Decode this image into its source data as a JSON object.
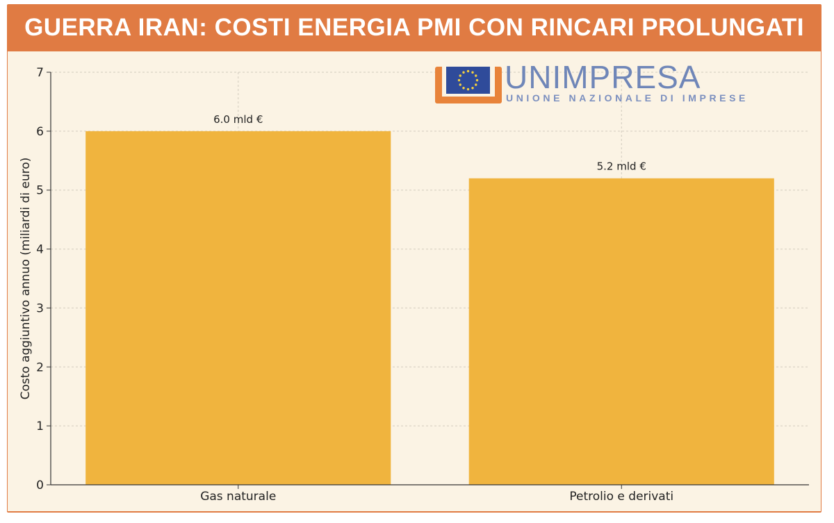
{
  "header": {
    "title": "GUERRA IRAN: COSTI ENERGIA PMI CON RINCARI PROLUNGATI"
  },
  "logo": {
    "name": "UNIMPRESA",
    "tagline": "UNIONE NAZIONALE DI IMPRESE"
  },
  "colors": {
    "frame": "#e07b43",
    "panel": "#fbf3e4",
    "bar": "#f0b43e",
    "logo": "#6f86b8"
  },
  "chart_data": {
    "type": "bar",
    "title": "GUERRA IRAN: COSTI ENERGIA PMI CON RINCARI PROLUNGATI",
    "categories": [
      "Gas naturale",
      "Petrolio e derivati"
    ],
    "values": [
      6.0,
      5.2
    ],
    "data_labels": [
      "6.0 mld €",
      "5.2 mld €"
    ],
    "xlabel": "",
    "ylabel": "Costo aggiuntivo annuo (miliardi di euro)",
    "ylim": [
      0,
      7
    ],
    "yticks": [
      "0",
      "1",
      "2",
      "3",
      "4",
      "5",
      "6",
      "7"
    ],
    "grid": true,
    "legend": "none"
  }
}
